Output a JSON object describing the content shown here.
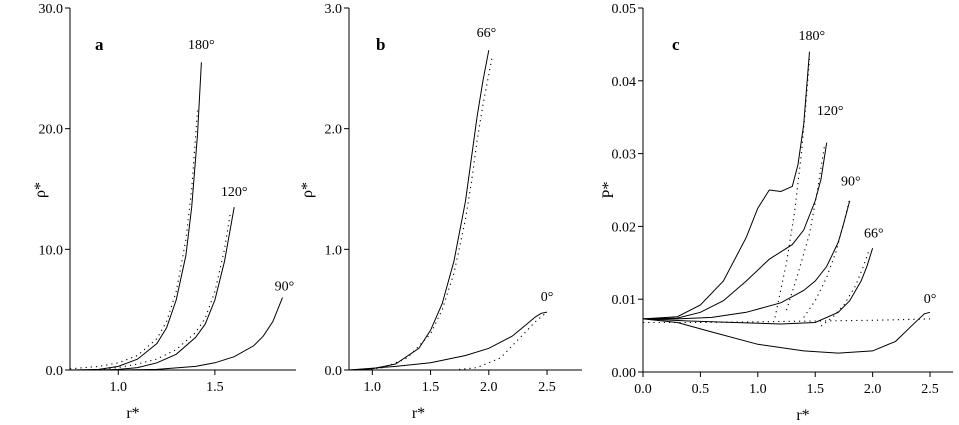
{
  "chart_data": [
    {
      "type": "line",
      "panel_label": "a",
      "xlabel": "r*",
      "ylabel": "ρ*",
      "xlim": [
        0.75,
        1.92
      ],
      "ylim": [
        0,
        30
      ],
      "xticks": [
        {
          "value": 1.0,
          "label": "1.0"
        },
        {
          "value": 1.5,
          "label": "1.5"
        }
      ],
      "yticks": [
        {
          "value": 0,
          "label": "0.0"
        },
        {
          "value": 10,
          "label": "10.0"
        },
        {
          "value": 20,
          "label": "20.0"
        },
        {
          "value": 30,
          "label": "30.0"
        }
      ],
      "grid": false,
      "series": [
        {
          "label": "180°",
          "label_pos": [
            1.43,
            26.6
          ],
          "style": "solid",
          "x": [
            0.75,
            0.9,
            1.0,
            1.1,
            1.2,
            1.25,
            1.3,
            1.35,
            1.38,
            1.41,
            1.43
          ],
          "y": [
            0.0,
            0.05,
            0.3,
            0.9,
            2.2,
            3.5,
            5.8,
            9.5,
            13.5,
            19.5,
            25.5
          ]
        },
        {
          "label": "",
          "style": "dotted",
          "x": [
            0.75,
            0.9,
            1.0,
            1.1,
            1.2,
            1.25,
            1.3,
            1.35,
            1.38,
            1.41
          ],
          "y": [
            0.1,
            0.3,
            0.6,
            1.2,
            2.6,
            4.0,
            6.5,
            10.8,
            15.0,
            21.5
          ]
        },
        {
          "label": "120°",
          "label_pos": [
            1.6,
            14.4
          ],
          "style": "solid",
          "x": [
            0.75,
            0.9,
            1.0,
            1.1,
            1.2,
            1.3,
            1.4,
            1.45,
            1.5,
            1.55,
            1.6
          ],
          "y": [
            0.0,
            0.0,
            0.05,
            0.2,
            0.6,
            1.3,
            2.7,
            3.8,
            5.8,
            9.0,
            13.5
          ]
        },
        {
          "label": "",
          "style": "dotted",
          "x": [
            0.9,
            1.0,
            1.1,
            1.2,
            1.3,
            1.4,
            1.45,
            1.5,
            1.55,
            1.58
          ],
          "y": [
            0.05,
            0.2,
            0.5,
            0.9,
            1.7,
            3.1,
            4.3,
            6.5,
            10.0,
            13.0
          ]
        },
        {
          "label": "90°",
          "label_pos": [
            1.86,
            6.6
          ],
          "style": "solid",
          "x": [
            0.75,
            1.0,
            1.2,
            1.4,
            1.5,
            1.6,
            1.7,
            1.75,
            1.8,
            1.85
          ],
          "y": [
            0.0,
            0.0,
            0.05,
            0.3,
            0.6,
            1.1,
            2.0,
            2.8,
            4.0,
            6.0
          ]
        }
      ]
    },
    {
      "type": "line",
      "panel_label": "b",
      "xlabel": "r*",
      "ylabel": "ρ*",
      "xlim": [
        0.8,
        2.8
      ],
      "ylim": [
        0,
        3
      ],
      "xticks": [
        {
          "value": 1.0,
          "label": "1.0"
        },
        {
          "value": 1.5,
          "label": "1.5"
        },
        {
          "value": 2.0,
          "label": "2.0"
        },
        {
          "value": 2.5,
          "label": "2.5"
        }
      ],
      "yticks": [
        {
          "value": 0,
          "label": "0.0"
        },
        {
          "value": 1,
          "label": "1.0"
        },
        {
          "value": 2,
          "label": "2.0"
        },
        {
          "value": 3,
          "label": "3.0"
        }
      ],
      "grid": false,
      "series": [
        {
          "label": "66°",
          "label_pos": [
            1.98,
            2.76
          ],
          "style": "solid",
          "x": [
            0.8,
            1.0,
            1.2,
            1.4,
            1.5,
            1.6,
            1.7,
            1.8,
            1.85,
            1.9,
            1.95,
            2.0
          ],
          "y": [
            0.0,
            0.01,
            0.05,
            0.18,
            0.33,
            0.55,
            0.9,
            1.4,
            1.75,
            2.1,
            2.4,
            2.65
          ]
        },
        {
          "label": "",
          "style": "dotted",
          "x": [
            0.9,
            1.1,
            1.3,
            1.5,
            1.6,
            1.7,
            1.8,
            1.85,
            1.9,
            1.95,
            2.0,
            2.03
          ],
          "y": [
            0.0,
            0.02,
            0.1,
            0.3,
            0.5,
            0.8,
            1.25,
            1.55,
            1.9,
            2.2,
            2.45,
            2.6
          ]
        },
        {
          "label": "0°",
          "label_pos": [
            2.5,
            0.57
          ],
          "style": "solid",
          "x": [
            0.8,
            1.2,
            1.5,
            1.8,
            2.0,
            2.2,
            2.3,
            2.4,
            2.45,
            2.5
          ],
          "y": [
            0.0,
            0.03,
            0.06,
            0.12,
            0.18,
            0.28,
            0.36,
            0.44,
            0.47,
            0.48
          ]
        },
        {
          "label": "",
          "style": "dotted",
          "x": [
            1.7,
            1.9,
            2.1,
            2.2,
            2.3,
            2.4,
            2.5
          ],
          "y": [
            0.0,
            0.02,
            0.1,
            0.2,
            0.3,
            0.4,
            0.48
          ]
        }
      ]
    },
    {
      "type": "line",
      "panel_label": "c",
      "xlabel": "r*",
      "ylabel": "P*",
      "xlim": [
        0.0,
        2.7
      ],
      "ylim": [
        0,
        0.05
      ],
      "xticks": [
        {
          "value": 0.0,
          "label": "0.0"
        },
        {
          "value": 0.5,
          "label": "0.5"
        },
        {
          "value": 1.0,
          "label": "1.0"
        },
        {
          "value": 1.5,
          "label": "1.5"
        },
        {
          "value": 2.0,
          "label": "2.0"
        },
        {
          "value": 2.5,
          "label": "2.5"
        }
      ],
      "yticks": [
        {
          "value": 0,
          "label": "0.00"
        },
        {
          "value": 0.01,
          "label": "0.01"
        },
        {
          "value": 0.02,
          "label": "0.02"
        },
        {
          "value": 0.03,
          "label": "0.03"
        },
        {
          "value": 0.04,
          "label": "0.04"
        },
        {
          "value": 0.05,
          "label": "0.05"
        }
      ],
      "grid": false,
      "series": [
        {
          "label": "180°",
          "label_pos": [
            1.47,
            0.0456
          ],
          "style": "solid",
          "x": [
            0.0,
            0.3,
            0.5,
            0.7,
            0.9,
            1.0,
            1.1,
            1.2,
            1.3,
            1.35,
            1.4,
            1.42,
            1.45
          ],
          "y": [
            0.0073,
            0.0076,
            0.0092,
            0.0125,
            0.0185,
            0.0225,
            0.025,
            0.0248,
            0.0255,
            0.0285,
            0.034,
            0.038,
            0.044
          ]
        },
        {
          "label": "120°",
          "label_pos": [
            1.63,
            0.0353
          ],
          "style": "solid",
          "x": [
            0.0,
            0.3,
            0.5,
            0.7,
            0.9,
            1.1,
            1.3,
            1.4,
            1.5,
            1.55,
            1.6
          ],
          "y": [
            0.0073,
            0.0074,
            0.0082,
            0.0098,
            0.0125,
            0.0155,
            0.0175,
            0.0195,
            0.0235,
            0.0265,
            0.0315
          ]
        },
        {
          "label": "90°",
          "label_pos": [
            1.81,
            0.0256
          ],
          "style": "solid",
          "x": [
            0.0,
            0.3,
            0.6,
            0.9,
            1.2,
            1.4,
            1.5,
            1.6,
            1.7,
            1.75,
            1.8
          ],
          "y": [
            0.0073,
            0.0073,
            0.0075,
            0.0082,
            0.0095,
            0.0112,
            0.0125,
            0.0145,
            0.0178,
            0.0205,
            0.0235
          ]
        },
        {
          "label": "66°",
          "label_pos": [
            2.01,
            0.0185
          ],
          "style": "solid",
          "x": [
            0.0,
            0.4,
            0.8,
            1.2,
            1.5,
            1.7,
            1.8,
            1.9,
            1.95,
            2.0
          ],
          "y": [
            0.0073,
            0.007,
            0.0068,
            0.0066,
            0.0068,
            0.0082,
            0.0098,
            0.0125,
            0.0145,
            0.017
          ]
        },
        {
          "label": "0°",
          "label_pos": [
            2.5,
            0.0095
          ],
          "style": "solid",
          "x": [
            0.0,
            0.3,
            0.6,
            1.0,
            1.4,
            1.7,
            2.0,
            2.2,
            2.35,
            2.45,
            2.5
          ],
          "y": [
            0.0073,
            0.0068,
            0.0055,
            0.0038,
            0.0029,
            0.0026,
            0.0029,
            0.0042,
            0.0065,
            0.008,
            0.0082
          ]
        },
        {
          "label": "",
          "style": "dotted",
          "x": [
            0.0,
            0.5,
            1.0,
            1.5,
            2.0,
            2.5
          ],
          "y": [
            0.0068,
            0.0068,
            0.0069,
            0.007,
            0.0071,
            0.0073
          ]
        },
        {
          "label": "",
          "style": "dotted",
          "x": [
            1.15,
            1.25,
            1.32,
            1.38,
            1.42,
            1.45
          ],
          "y": [
            0.0075,
            0.015,
            0.022,
            0.03,
            0.037,
            0.043
          ]
        },
        {
          "label": "",
          "style": "dotted",
          "x": [
            1.25,
            1.35,
            1.45,
            1.52,
            1.58
          ],
          "y": [
            0.0085,
            0.0135,
            0.019,
            0.025,
            0.031
          ]
        },
        {
          "label": "",
          "style": "dotted",
          "x": [
            1.4,
            1.5,
            1.6,
            1.68,
            1.75,
            1.8
          ],
          "y": [
            0.0075,
            0.0098,
            0.013,
            0.0165,
            0.0205,
            0.0238
          ]
        },
        {
          "label": "",
          "style": "dotted",
          "x": [
            1.55,
            1.65,
            1.75,
            1.85,
            1.92,
            1.97
          ],
          "y": [
            0.0063,
            0.0075,
            0.0092,
            0.0118,
            0.0145,
            0.0168
          ]
        }
      ]
    }
  ]
}
